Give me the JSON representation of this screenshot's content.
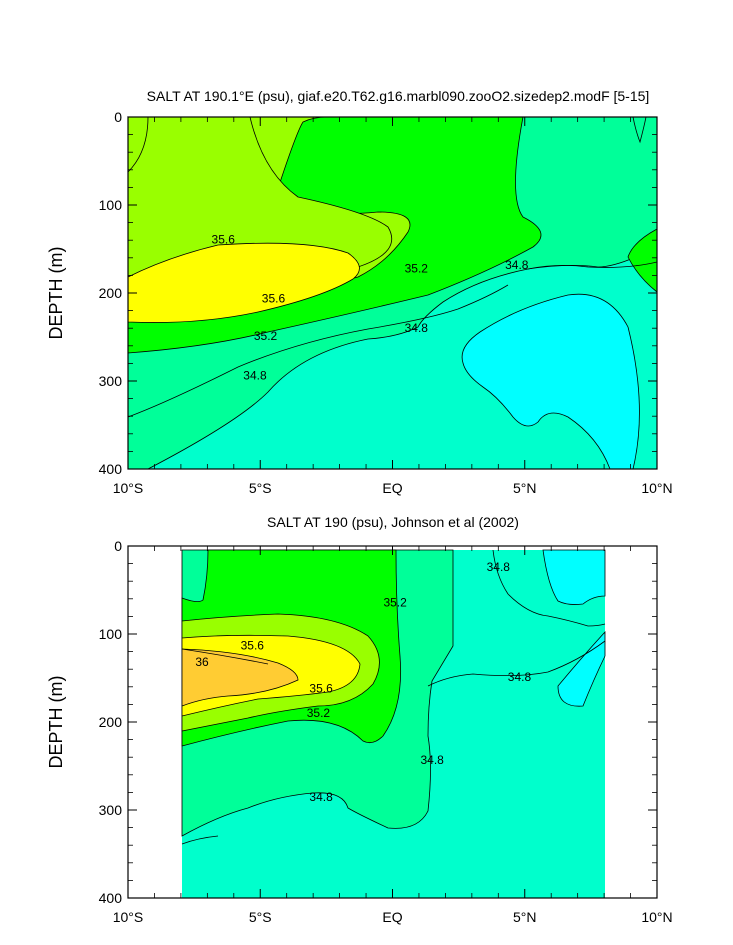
{
  "chart_data": [
    {
      "type": "contour",
      "title": "SALT AT 190.1°E (psu), giaf.e20.T62.g16.marbl090.zooO2.sizedep2.modF [5-15]",
      "ylabel": "DEPTH (m)",
      "xlim": [
        -10,
        10
      ],
      "ylim": [
        400,
        0
      ],
      "y_ticks": [
        0,
        100,
        200,
        300,
        400
      ],
      "x_ticks": [
        {
          "value": -10,
          "label": "10°S"
        },
        {
          "value": -5,
          "label": "5°S"
        },
        {
          "value": 0,
          "label": "EQ"
        },
        {
          "value": 5,
          "label": "5°N"
        },
        {
          "value": 10,
          "label": "10°N"
        }
      ],
      "contour_interval": 0.2,
      "contour_labels": [
        {
          "value": "35.6",
          "lat": -6.4,
          "depth": 139
        },
        {
          "value": "35.6",
          "lat": -4.5,
          "depth": 206
        },
        {
          "value": "35.2",
          "lat": -4.8,
          "depth": 249
        },
        {
          "value": "34.8",
          "lat": -5.2,
          "depth": 294
        },
        {
          "value": "35.2",
          "lat": 0.9,
          "depth": 172
        },
        {
          "value": "34.8",
          "lat": 0.9,
          "depth": 240
        },
        {
          "value": "34.8",
          "lat": 4.7,
          "depth": 168
        }
      ]
    },
    {
      "type": "contour",
      "title": "SALT AT 190 (psu), Johnson et al (2002)",
      "ylabel": "DEPTH (m)",
      "xlim": [
        -10,
        10
      ],
      "ylim": [
        400,
        0
      ],
      "data_lat_range": [
        -8,
        8
      ],
      "y_ticks": [
        0,
        100,
        200,
        300,
        400
      ],
      "x_ticks": [
        {
          "value": -10,
          "label": "10°S"
        },
        {
          "value": -5,
          "label": "5°S"
        },
        {
          "value": 0,
          "label": "EQ"
        },
        {
          "value": 5,
          "label": "5°N"
        },
        {
          "value": 10,
          "label": "10°N"
        }
      ],
      "contour_interval": 0.2,
      "contour_labels": [
        {
          "value": "35.6",
          "lat": -5.3,
          "depth": 113
        },
        {
          "value": "36",
          "lat": -7.2,
          "depth": 132
        },
        {
          "value": "35.6",
          "lat": -2.7,
          "depth": 162
        },
        {
          "value": "35.2",
          "lat": -2.8,
          "depth": 190
        },
        {
          "value": "34.8",
          "lat": -2.7,
          "depth": 285
        },
        {
          "value": "35.2",
          "lat": 0.1,
          "depth": 64
        },
        {
          "value": "34.8",
          "lat": 1.5,
          "depth": 243
        },
        {
          "value": "34.8",
          "lat": 4.0,
          "depth": 24
        },
        {
          "value": "34.8",
          "lat": 4.8,
          "depth": 149
        }
      ]
    }
  ]
}
